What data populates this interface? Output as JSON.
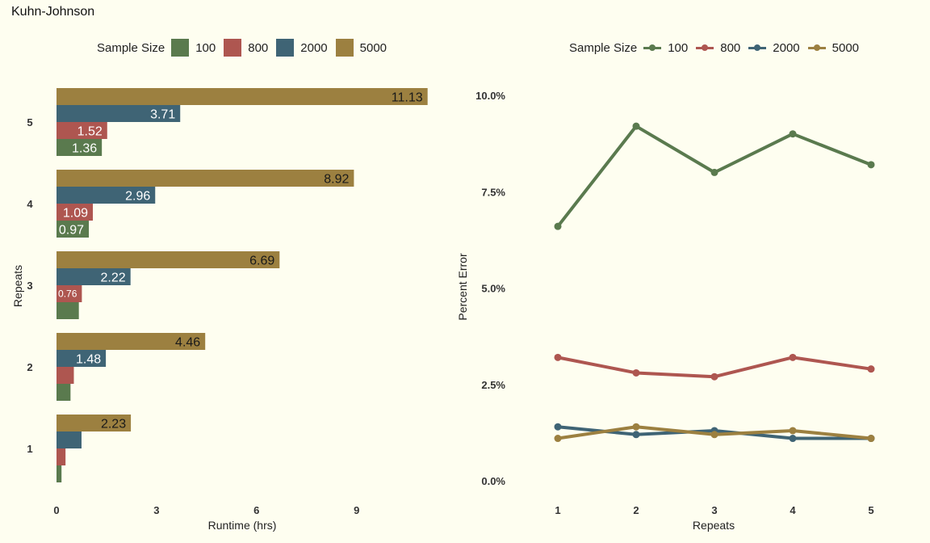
{
  "page_title": "Kuhn-Johnson",
  "colors": {
    "100": "#5a7a4e",
    "800": "#ae5650",
    "2000": "#3f6475",
    "5000": "#9c8040",
    "background": "#fefef0"
  },
  "legend_left": {
    "title": "Sample Size",
    "items": [
      {
        "label": "100",
        "color": "#5a7a4e"
      },
      {
        "label": "800",
        "color": "#ae5650"
      },
      {
        "label": "2000",
        "color": "#3f6475"
      },
      {
        "label": "5000",
        "color": "#9c8040"
      }
    ]
  },
  "legend_right": {
    "title": "Sample Size",
    "items": [
      {
        "label": "100",
        "color": "#5a7a4e"
      },
      {
        "label": "800",
        "color": "#ae5650"
      },
      {
        "label": "2000",
        "color": "#3f6475"
      },
      {
        "label": "5000",
        "color": "#9c8040"
      }
    ]
  },
  "chart_data": [
    {
      "type": "bar",
      "orientation": "horizontal",
      "title": "",
      "xlabel": "Runtime (hrs)",
      "ylabel": "Repeats",
      "categories": [
        "1",
        "2",
        "3",
        "4",
        "5"
      ],
      "xlim": [
        0,
        11.4
      ],
      "xticks": [
        0,
        3,
        6,
        9
      ],
      "grid": false,
      "legend_position": "top",
      "series": [
        {
          "name": "100",
          "values": [
            0.15,
            0.42,
            0.67,
            0.97,
            1.36
          ],
          "labels": [
            "",
            "",
            "",
            "0.97",
            "1.36"
          ]
        },
        {
          "name": "800",
          "values": [
            0.27,
            0.52,
            0.76,
            1.09,
            1.52
          ],
          "labels": [
            "",
            "",
            "0.76",
            "1.09",
            "1.52"
          ]
        },
        {
          "name": "2000",
          "values": [
            0.75,
            1.48,
            2.22,
            2.96,
            3.71
          ],
          "labels": [
            "",
            "1.48",
            "2.22",
            "2.96",
            "3.71"
          ]
        },
        {
          "name": "5000",
          "values": [
            2.23,
            4.46,
            6.69,
            8.92,
            11.13
          ],
          "labels": [
            "2.23",
            "4.46",
            "6.69",
            "8.92",
            "11.13"
          ]
        }
      ]
    },
    {
      "type": "line",
      "title": "",
      "xlabel": "Repeats",
      "ylabel": "Percent Error",
      "x": [
        1,
        2,
        3,
        4,
        5
      ],
      "ylim": [
        0,
        10.4
      ],
      "yticks": [
        0,
        2.5,
        5,
        7.5,
        10
      ],
      "ytick_labels": [
        "0.0%",
        "2.5%",
        "5.0%",
        "7.5%",
        "10.0%"
      ],
      "grid": false,
      "legend_position": "top",
      "series": [
        {
          "name": "100",
          "values": [
            6.6,
            9.2,
            8.0,
            9.0,
            8.2
          ]
        },
        {
          "name": "800",
          "values": [
            3.2,
            2.8,
            2.7,
            3.2,
            2.9
          ]
        },
        {
          "name": "2000",
          "values": [
            1.4,
            1.2,
            1.3,
            1.1,
            1.1
          ]
        },
        {
          "name": "5000",
          "values": [
            1.1,
            1.4,
            1.2,
            1.3,
            1.1
          ]
        }
      ]
    }
  ]
}
